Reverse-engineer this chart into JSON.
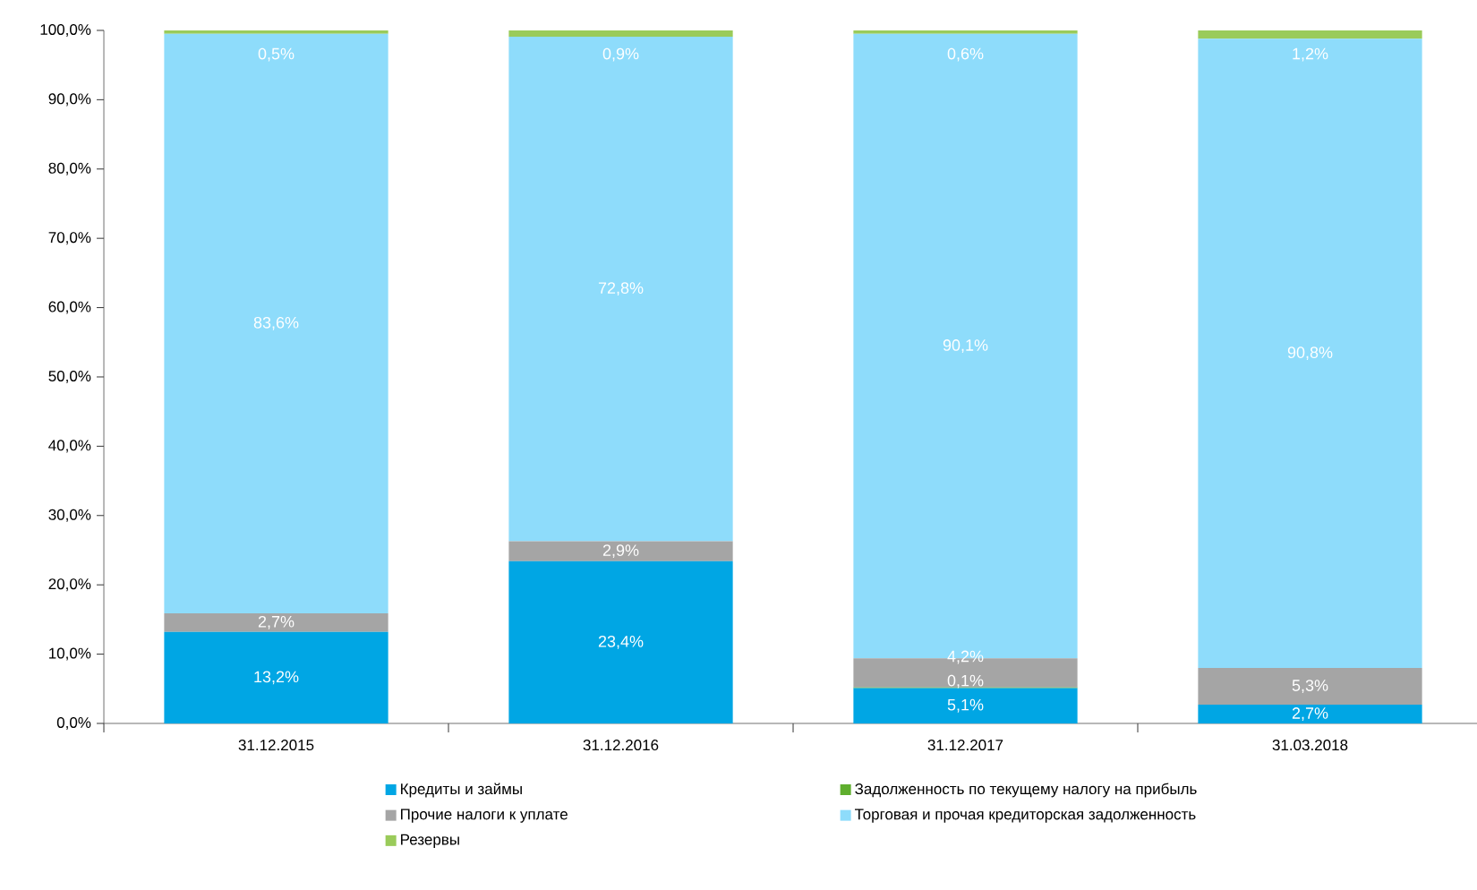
{
  "chart_data": {
    "type": "bar",
    "stacked": true,
    "legend": "bottom",
    "categories": [
      "31.12.2015",
      "31.12.2016",
      "31.12.2017",
      "31.03.2018"
    ],
    "series": [
      {
        "name": "Кредиты и займы",
        "color": "#00a6e4",
        "values": [
          13.2,
          23.4,
          5.1,
          2.7
        ],
        "value_labels": [
          "13,2%",
          "23,4%",
          "5,1%",
          "2,7%"
        ]
      },
      {
        "name": "Задолженность по текущему налогу на прибыль",
        "color": "#5fae2e",
        "values": [
          0,
          0,
          0.1,
          0
        ],
        "value_labels": [
          null,
          null,
          "0,1%",
          null
        ]
      },
      {
        "name": "Прочие налоги к уплате",
        "color": "#a5a5a5",
        "values": [
          2.7,
          2.9,
          4.2,
          5.3
        ],
        "value_labels": [
          "2,7%",
          "2,9%",
          "4,2%",
          "5,3%"
        ]
      },
      {
        "name": "Торговая и прочая кредиторская задолженность",
        "color": "#8edcfb",
        "values": [
          83.6,
          72.8,
          90.1,
          90.8
        ],
        "value_labels": [
          "83,6%",
          "72,8%",
          "90,1%",
          "90,8%"
        ]
      },
      {
        "name": "Резервы",
        "color": "#9acb5a",
        "values": [
          0.5,
          0.9,
          0.6,
          1.2
        ],
        "value_labels": [
          "0,5%",
          "0,9%",
          "0,6%",
          "1,2%"
        ]
      }
    ],
    "ylim": [
      0,
      100
    ],
    "yticks": [
      {
        "value": 0,
        "label": "0,0%"
      },
      {
        "value": 10,
        "label": "10,0%"
      },
      {
        "value": 20,
        "label": "20,0%"
      },
      {
        "value": 30,
        "label": "30,0%"
      },
      {
        "value": 40,
        "label": "40,0%"
      },
      {
        "value": 50,
        "label": "50,0%"
      },
      {
        "value": 60,
        "label": "60,0%"
      },
      {
        "value": 70,
        "label": "70,0%"
      },
      {
        "value": 80,
        "label": "80,0%"
      },
      {
        "value": 90,
        "label": "90,0%"
      },
      {
        "value": 100,
        "label": "100,0%"
      }
    ]
  }
}
